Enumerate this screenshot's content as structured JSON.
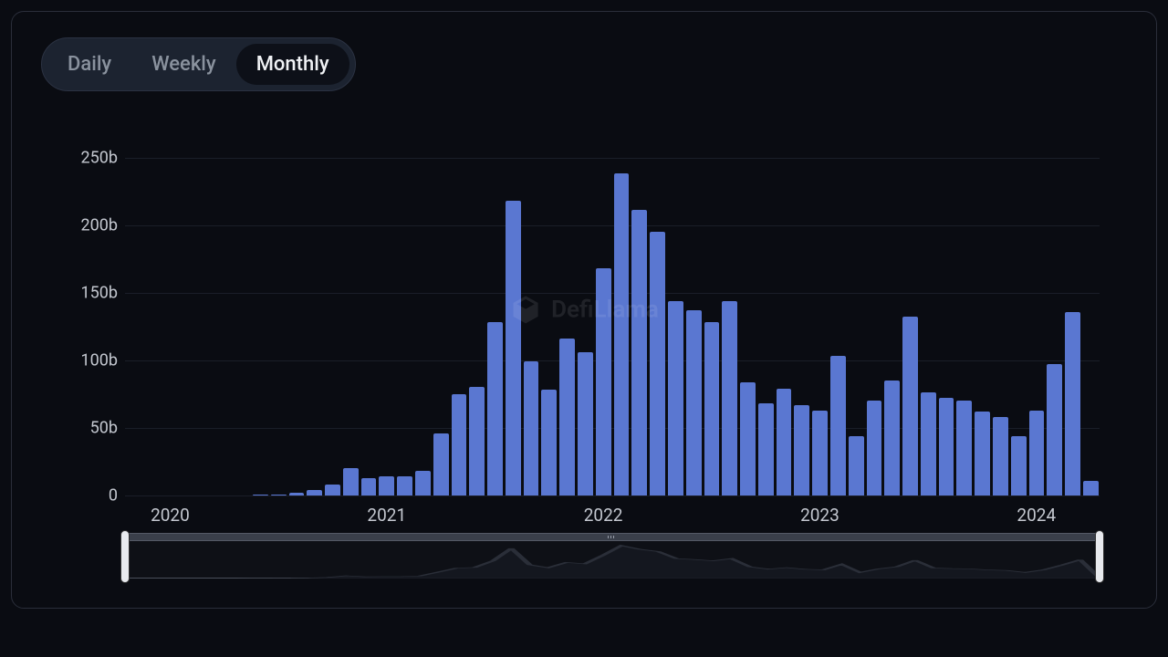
{
  "tabs": {
    "daily": "Daily",
    "weekly": "Weekly",
    "monthly": "Monthly",
    "active": "monthly"
  },
  "watermark": {
    "text": "DefiLlama"
  },
  "chart": {
    "type": "bar",
    "bar_color": "#5a77d1",
    "background_color": "#0a0c12",
    "grid_color": "#1a1e28",
    "axis_text_color": "#c4c8d0",
    "ylim": [
      0,
      270
    ],
    "yticks": [
      {
        "v": 0,
        "label": "0"
      },
      {
        "v": 50,
        "label": "50b"
      },
      {
        "v": 100,
        "label": "100b"
      },
      {
        "v": 150,
        "label": "150b"
      },
      {
        "v": 200,
        "label": "200b"
      },
      {
        "v": 250,
        "label": "250b"
      }
    ],
    "xticks": [
      {
        "index": 2,
        "label": "2020"
      },
      {
        "index": 14,
        "label": "2021"
      },
      {
        "index": 26,
        "label": "2022"
      },
      {
        "index": 38,
        "label": "2023"
      },
      {
        "index": 50,
        "label": "2024"
      }
    ],
    "values": [
      0,
      0,
      0,
      0,
      0,
      0,
      0,
      0.5,
      1,
      2,
      4,
      8,
      20,
      13,
      14,
      14,
      18,
      46,
      75,
      80,
      128,
      218,
      99,
      78,
      116,
      106,
      168,
      238,
      211,
      195,
      144,
      137,
      128,
      144,
      84,
      68,
      79,
      67,
      63,
      103,
      44,
      70,
      85,
      132,
      76,
      72,
      70,
      62,
      58,
      44,
      63,
      97,
      136,
      11
    ]
  },
  "range_slider": {
    "sparkline_color": "#2a2e38",
    "sparkline_fill": "#14171f"
  }
}
